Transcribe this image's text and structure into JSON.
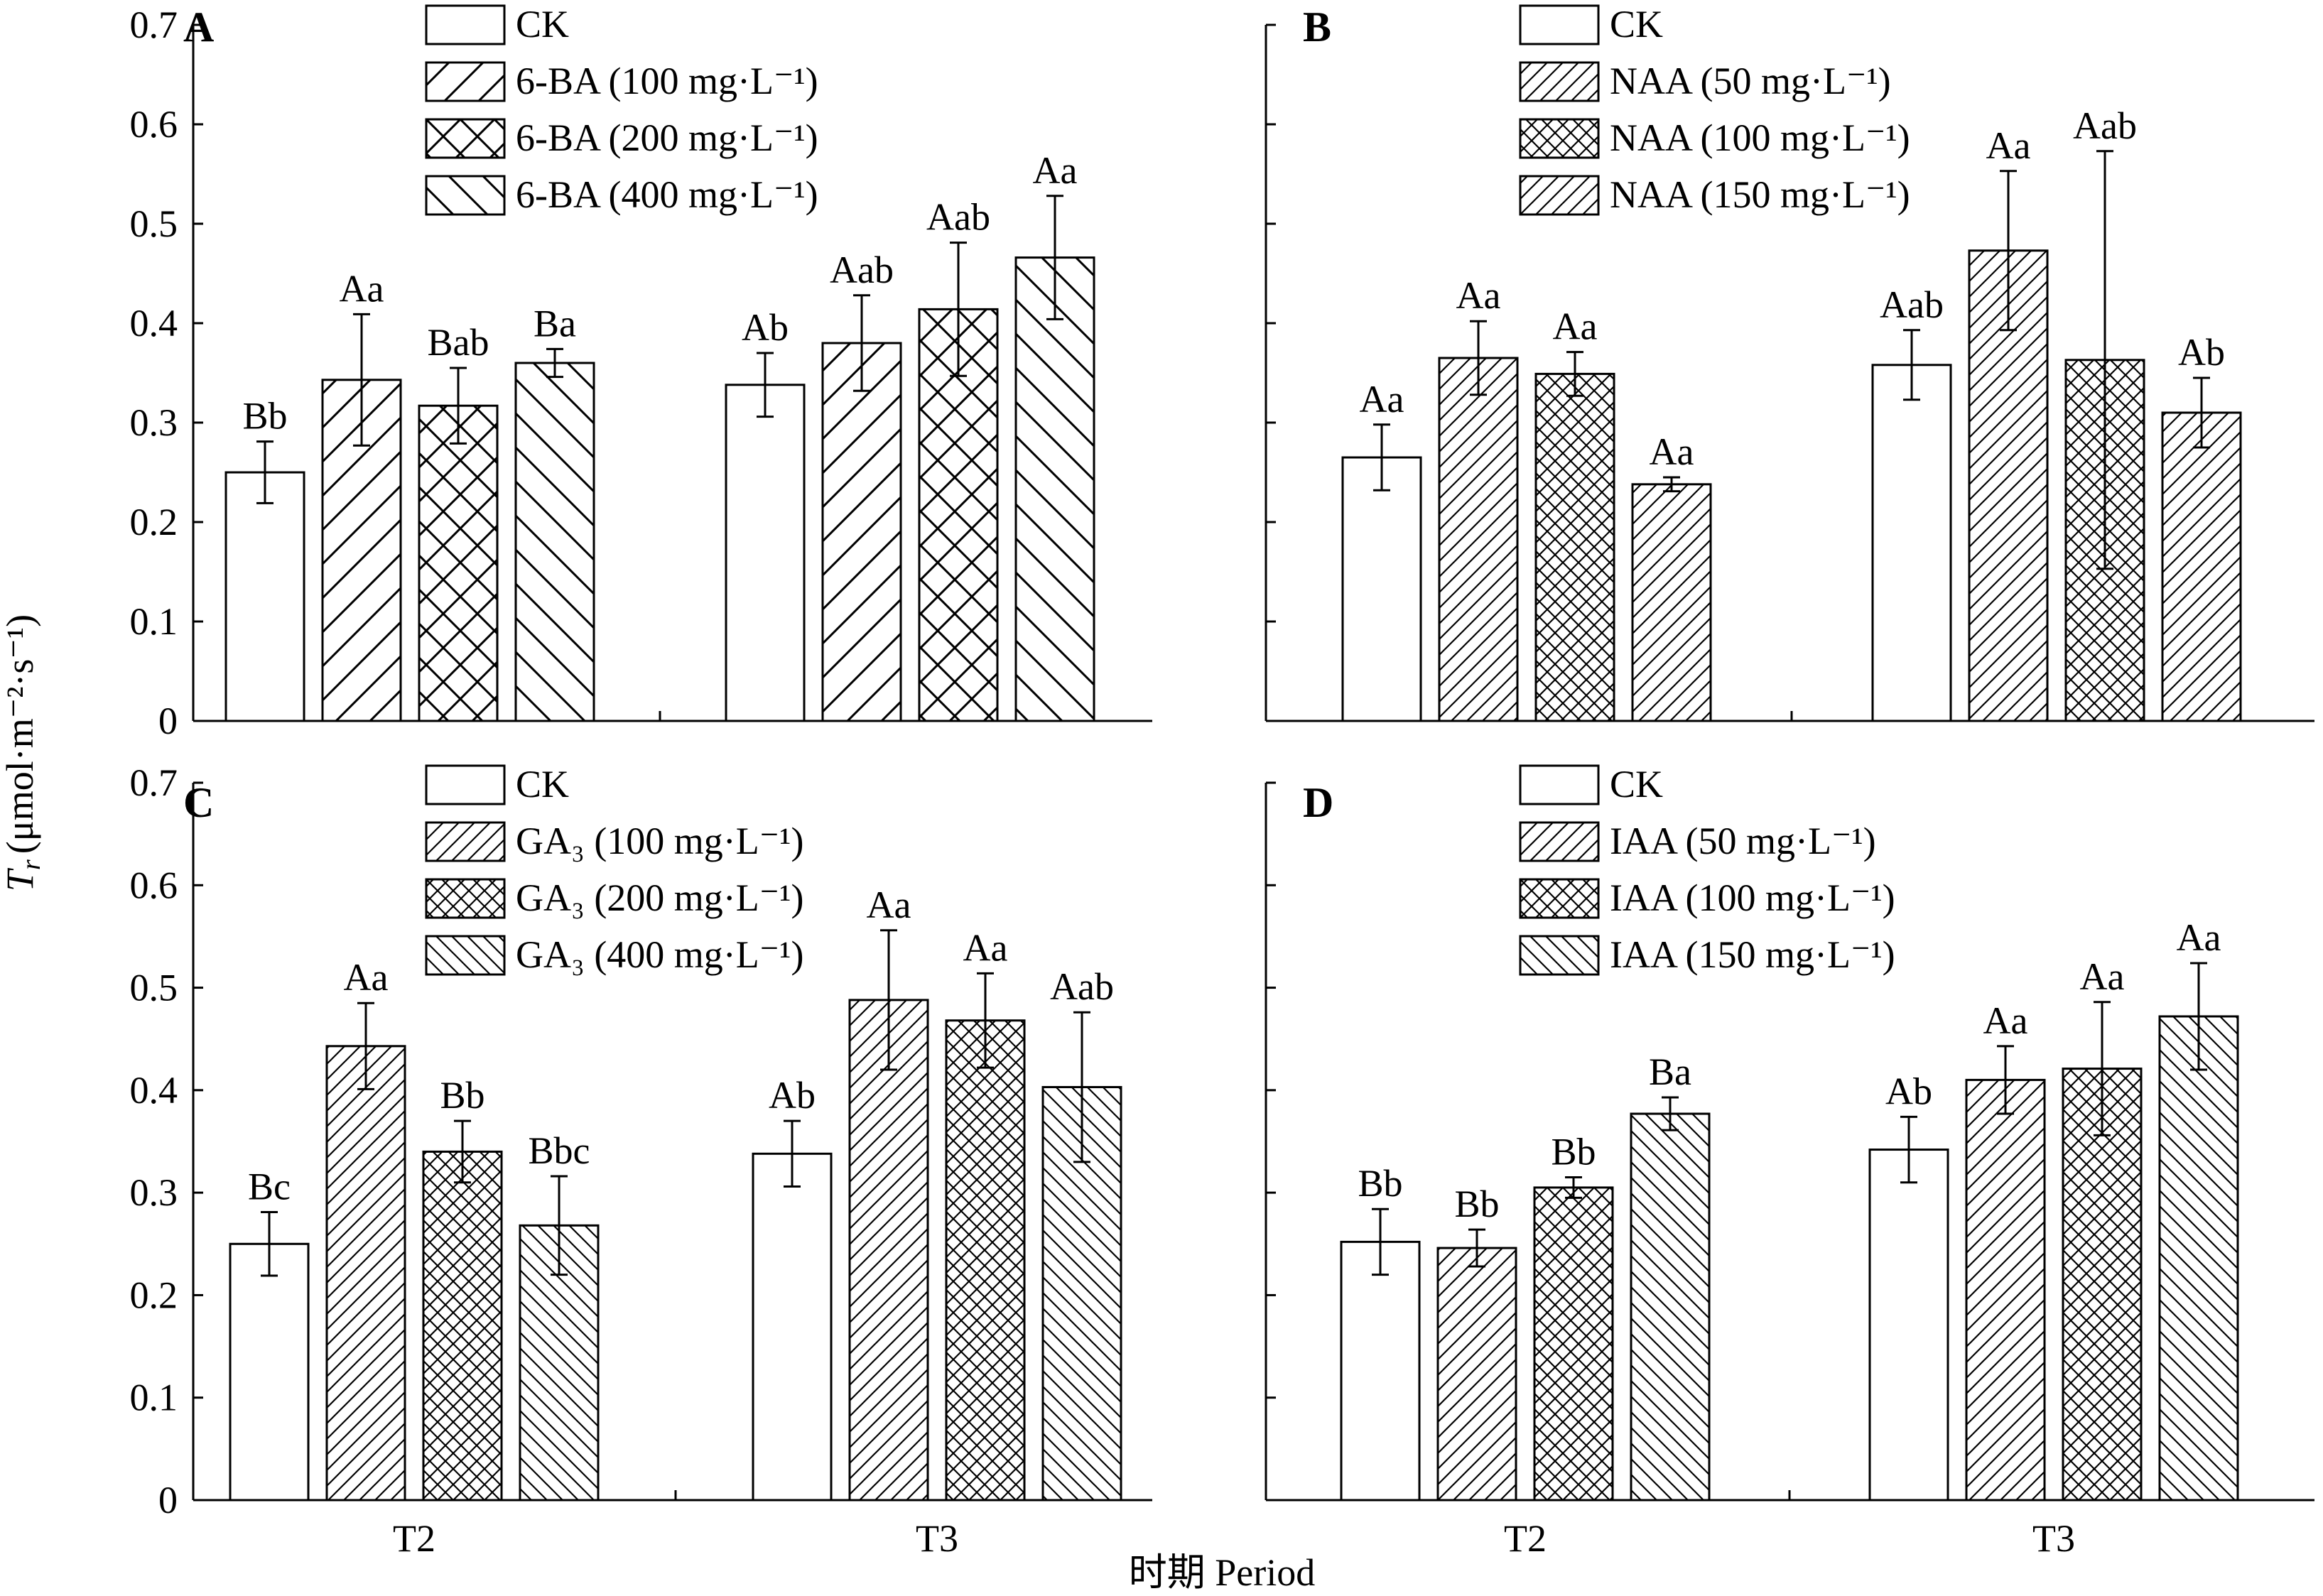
{
  "figure": {
    "y_axis_label_var": "T",
    "y_axis_label_sub": "r",
    "y_axis_label_unit": "(μmol·m⁻²·s⁻¹)",
    "x_axis_label": "时期 Period"
  },
  "colors": {
    "bar_fill": "#ffffff",
    "stroke": "#000000"
  },
  "chart_data": [
    {
      "type": "bar",
      "panel": "A",
      "categories": [
        "T2",
        "T3"
      ],
      "ylim": [
        0,
        0.7
      ],
      "yticks": [
        "0",
        "0.1",
        "0.2",
        "0.3",
        "0.4",
        "0.5",
        "0.6",
        "0.7"
      ],
      "show_tick_labels": true,
      "show_category_labels": false,
      "grid": false,
      "legend_position": "top",
      "series": [
        {
          "name": "CK",
          "pattern": "none",
          "values": [
            0.25,
            0.338
          ],
          "errors": [
            0.031,
            0.032
          ],
          "labels": [
            "Bb",
            "Ab"
          ]
        },
        {
          "name": "6-BA (100 mg·L⁻¹)",
          "pattern": "fwd",
          "values": [
            0.343,
            0.38
          ],
          "errors": [
            0.066,
            0.048
          ],
          "labels": [
            "Aa",
            "Aab"
          ]
        },
        {
          "name": "6-BA (200 mg·L⁻¹)",
          "pattern": "cross",
          "values": [
            0.317,
            0.414
          ],
          "errors": [
            0.038,
            0.067
          ],
          "labels": [
            "Bab",
            "Aab"
          ]
        },
        {
          "name": "6-BA (400 mg·L⁻¹)",
          "pattern": "back",
          "values": [
            0.36,
            0.466
          ],
          "errors": [
            0.014,
            0.062
          ],
          "labels": [
            "Ba",
            "Aa"
          ]
        }
      ]
    },
    {
      "type": "bar",
      "panel": "B",
      "categories": [
        "T2",
        "T3"
      ],
      "ylim": [
        0,
        0.7
      ],
      "yticks": [
        "0",
        "0.1",
        "0.2",
        "0.3",
        "0.4",
        "0.5",
        "0.6",
        "0.7"
      ],
      "show_tick_labels": false,
      "show_category_labels": false,
      "grid": false,
      "legend_position": "top",
      "series": [
        {
          "name": "CK",
          "pattern": "none",
          "values": [
            0.265,
            0.358
          ],
          "errors": [
            0.033,
            0.035
          ],
          "labels": [
            "Aa",
            "Aab"
          ]
        },
        {
          "name": "NAA (50 mg·L⁻¹)",
          "pattern": "fwd-dense",
          "values": [
            0.365,
            0.473
          ],
          "errors": [
            0.037,
            0.08
          ],
          "labels": [
            "Aa",
            "Aa"
          ]
        },
        {
          "name": "NAA (100 mg·L⁻¹)",
          "pattern": "cross-dense",
          "values": [
            0.349,
            0.363
          ],
          "errors": [
            0.022,
            0.21
          ],
          "labels": [
            "Aa",
            "Aab"
          ]
        },
        {
          "name": "NAA (150 mg·L⁻¹)",
          "pattern": "fwd-dense",
          "values": [
            0.238,
            0.31
          ],
          "errors": [
            0.007,
            0.035
          ],
          "labels": [
            "Aa",
            "Ab"
          ]
        }
      ]
    },
    {
      "type": "bar",
      "panel": "C",
      "categories": [
        "T2",
        "T3"
      ],
      "ylim": [
        0,
        0.7
      ],
      "yticks": [
        "0",
        "0.1",
        "0.2",
        "0.3",
        "0.4",
        "0.5",
        "0.6",
        "0.7"
      ],
      "show_tick_labels": true,
      "show_category_labels": true,
      "grid": false,
      "legend_position": "top",
      "series": [
        {
          "name": "CK",
          "pattern": "none",
          "values": [
            0.25,
            0.338
          ],
          "errors": [
            0.031,
            0.032
          ],
          "labels": [
            "Bc",
            "Ab"
          ]
        },
        {
          "name": "GA₃ (100 mg·L⁻¹)",
          "pattern": "fwd-dense",
          "values": [
            0.443,
            0.488
          ],
          "errors": [
            0.042,
            0.068
          ],
          "labels": [
            "Aa",
            "Aa"
          ]
        },
        {
          "name": "GA₃ (200 mg·L⁻¹)",
          "pattern": "cross-dense",
          "values": [
            0.34,
            0.468
          ],
          "errors": [
            0.03,
            0.046
          ],
          "labels": [
            "Bb",
            "Aa"
          ]
        },
        {
          "name": "GA₃ (400 mg·L⁻¹)",
          "pattern": "back-dense",
          "values": [
            0.268,
            0.403
          ],
          "errors": [
            0.048,
            0.073
          ],
          "labels": [
            "Bbc",
            "Aab"
          ]
        }
      ]
    },
    {
      "type": "bar",
      "panel": "D",
      "categories": [
        "T2",
        "T3"
      ],
      "ylim": [
        0,
        0.7
      ],
      "yticks": [
        "0",
        "0.1",
        "0.2",
        "0.3",
        "0.4",
        "0.5",
        "0.6",
        "0.7"
      ],
      "show_tick_labels": false,
      "show_category_labels": true,
      "grid": false,
      "legend_position": "top",
      "series": [
        {
          "name": "CK",
          "pattern": "none",
          "values": [
            0.252,
            0.342
          ],
          "errors": [
            0.032,
            0.032
          ],
          "labels": [
            "Bb",
            "Ab"
          ]
        },
        {
          "name": "IAA (50 mg·L⁻¹)",
          "pattern": "fwd-dense",
          "values": [
            0.246,
            0.41
          ],
          "errors": [
            0.018,
            0.033
          ],
          "labels": [
            "Bb",
            "Aa"
          ]
        },
        {
          "name": "IAA (100 mg·L⁻¹)",
          "pattern": "cross-dense",
          "values": [
            0.305,
            0.421
          ],
          "errors": [
            0.01,
            0.065
          ],
          "labels": [
            "Bb",
            "Aa"
          ]
        },
        {
          "name": "IAA (150 mg·L⁻¹)",
          "pattern": "back-dense",
          "values": [
            0.377,
            0.472
          ],
          "errors": [
            0.016,
            0.052
          ],
          "labels": [
            "Ba",
            "Aa"
          ]
        }
      ]
    }
  ]
}
